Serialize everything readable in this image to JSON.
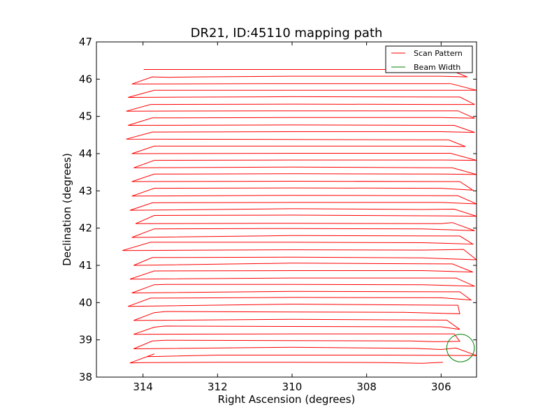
{
  "chart_data": {
    "type": "line",
    "title": "DR21, ID:45110 mapping path",
    "xlabel": "Right Ascension (degrees)",
    "ylabel": "Declination (degrees)",
    "xlim": [
      315.25,
      305.05
    ],
    "ylim": [
      38,
      47
    ],
    "x_invert": true,
    "xticks": [
      314,
      312,
      310,
      308,
      306
    ],
    "xtick_labels": [
      "314",
      "312",
      "310",
      "308",
      "306"
    ],
    "yticks": [
      38,
      39,
      40,
      41,
      42,
      43,
      44,
      45,
      46,
      47
    ],
    "ytick_labels": [
      "38",
      "39",
      "40",
      "41",
      "42",
      "43",
      "44",
      "45",
      "46",
      "47"
    ],
    "grid": false,
    "legend_position": "top-right",
    "colors": {
      "scan_pattern": "#ff0000",
      "beam_width": "#008000"
    },
    "series": [
      {
        "name": "Scan Pattern",
        "legend_label": "Scan Pattern",
        "points": [
          [
            305.95,
            38.4
          ],
          [
            306.5,
            38.37
          ],
          [
            307.5,
            38.39
          ],
          [
            310.0,
            38.4
          ],
          [
            312.0,
            38.4
          ],
          [
            314.0,
            38.39
          ],
          [
            314.35,
            38.38
          ],
          [
            313.7,
            38.62
          ],
          [
            313.9,
            38.55
          ],
          [
            312.0,
            38.59
          ],
          [
            310.0,
            38.59
          ],
          [
            307.5,
            38.59
          ],
          [
            305.05,
            38.58
          ],
          [
            305.6,
            38.78
          ],
          [
            306.0,
            38.74
          ],
          [
            306.7,
            38.77
          ],
          [
            310.0,
            38.8
          ],
          [
            314.25,
            38.76
          ],
          [
            313.75,
            38.97
          ],
          [
            313.4,
            38.99
          ],
          [
            310.0,
            38.98
          ],
          [
            306.8,
            38.97
          ],
          [
            306.2,
            38.95
          ],
          [
            305.5,
            38.96
          ],
          [
            305.65,
            39.16
          ],
          [
            310.0,
            39.16
          ],
          [
            314.25,
            39.15
          ],
          [
            313.7,
            39.34
          ],
          [
            313.4,
            39.37
          ],
          [
            310.0,
            39.36
          ],
          [
            306.0,
            39.35
          ],
          [
            305.5,
            39.28
          ],
          [
            305.85,
            39.53
          ],
          [
            310.0,
            39.55
          ],
          [
            314.25,
            39.52
          ],
          [
            313.7,
            39.73
          ],
          [
            313.4,
            39.76
          ],
          [
            310.0,
            39.75
          ],
          [
            307.0,
            39.74
          ],
          [
            305.5,
            39.7
          ],
          [
            305.55,
            39.93
          ],
          [
            310.0,
            39.96
          ],
          [
            314.4,
            39.9
          ],
          [
            313.8,
            40.12
          ],
          [
            310.0,
            40.14
          ],
          [
            306.0,
            40.13
          ],
          [
            305.2,
            40.07
          ],
          [
            305.5,
            40.29
          ],
          [
            310.0,
            40.3
          ],
          [
            314.3,
            40.26
          ],
          [
            313.7,
            40.48
          ],
          [
            313.4,
            40.49
          ],
          [
            310.0,
            40.49
          ],
          [
            306.5,
            40.48
          ],
          [
            305.1,
            40.44
          ],
          [
            305.6,
            40.66
          ],
          [
            310.0,
            40.66
          ],
          [
            314.35,
            40.63
          ],
          [
            313.7,
            40.85
          ],
          [
            310.0,
            40.86
          ],
          [
            306.5,
            40.86
          ],
          [
            305.15,
            40.82
          ],
          [
            305.7,
            41.04
          ],
          [
            310.0,
            41.06
          ],
          [
            314.25,
            41.0
          ],
          [
            313.75,
            41.21
          ],
          [
            310.0,
            41.22
          ],
          [
            306.5,
            41.2
          ],
          [
            305.05,
            41.15
          ],
          [
            305.4,
            41.43
          ],
          [
            306.5,
            41.41
          ],
          [
            310.0,
            41.42
          ],
          [
            314.55,
            41.4
          ],
          [
            313.8,
            41.62
          ],
          [
            310.0,
            41.62
          ],
          [
            306.5,
            41.61
          ],
          [
            305.15,
            41.57
          ],
          [
            305.5,
            41.79
          ],
          [
            310.0,
            41.8
          ],
          [
            314.3,
            41.75
          ],
          [
            313.7,
            41.98
          ],
          [
            310.0,
            41.99
          ],
          [
            306.5,
            41.98
          ],
          [
            305.1,
            41.93
          ],
          [
            305.7,
            42.15
          ],
          [
            306.0,
            42.12
          ],
          [
            310.0,
            42.13
          ],
          [
            314.2,
            42.12
          ],
          [
            313.7,
            42.34
          ],
          [
            310.0,
            42.35
          ],
          [
            306.0,
            42.33
          ],
          [
            305.05,
            42.32
          ],
          [
            305.65,
            42.51
          ],
          [
            306.5,
            42.5
          ],
          [
            310.0,
            42.52
          ],
          [
            314.35,
            42.48
          ],
          [
            313.75,
            42.68
          ],
          [
            310.0,
            42.69
          ],
          [
            306.0,
            42.69
          ],
          [
            305.05,
            42.65
          ],
          [
            305.55,
            42.87
          ],
          [
            310.0,
            42.88
          ],
          [
            314.3,
            42.86
          ],
          [
            313.7,
            43.07
          ],
          [
            310.0,
            43.08
          ],
          [
            306.0,
            43.07
          ],
          [
            305.15,
            43.02
          ],
          [
            305.5,
            43.25
          ],
          [
            310.0,
            43.26
          ],
          [
            314.3,
            43.25
          ],
          [
            313.7,
            43.45
          ],
          [
            310.0,
            43.46
          ],
          [
            305.9,
            43.45
          ],
          [
            305.05,
            43.44
          ],
          [
            305.7,
            43.62
          ],
          [
            310.0,
            43.64
          ],
          [
            314.25,
            43.62
          ],
          [
            313.7,
            43.82
          ],
          [
            310.0,
            43.83
          ],
          [
            306.0,
            43.83
          ],
          [
            305.05,
            43.82
          ],
          [
            305.75,
            44.01
          ],
          [
            310.0,
            44.01
          ],
          [
            314.3,
            44.0
          ],
          [
            313.7,
            44.2
          ],
          [
            310.0,
            44.2
          ],
          [
            306.0,
            44.2
          ],
          [
            305.35,
            44.19
          ],
          [
            305.8,
            44.37
          ],
          [
            310.0,
            44.38
          ],
          [
            314.45,
            44.39
          ],
          [
            313.75,
            44.58
          ],
          [
            310.0,
            44.59
          ],
          [
            306.0,
            44.59
          ],
          [
            305.1,
            44.57
          ],
          [
            305.65,
            44.76
          ],
          [
            310.0,
            44.77
          ],
          [
            314.4,
            44.76
          ],
          [
            313.75,
            44.96
          ],
          [
            310.0,
            44.97
          ],
          [
            306.0,
            44.97
          ],
          [
            305.1,
            44.95
          ],
          [
            305.55,
            45.15
          ],
          [
            310.0,
            45.15
          ],
          [
            314.45,
            45.14
          ],
          [
            313.8,
            45.32
          ],
          [
            310.0,
            45.33
          ],
          [
            306.0,
            45.32
          ],
          [
            305.1,
            45.32
          ],
          [
            305.5,
            45.52
          ],
          [
            310.0,
            45.53
          ],
          [
            314.4,
            45.51
          ],
          [
            313.7,
            45.7
          ],
          [
            310.0,
            45.7
          ],
          [
            306.0,
            45.7
          ],
          [
            305.05,
            45.7
          ],
          [
            305.75,
            45.88
          ],
          [
            310.0,
            45.88
          ],
          [
            314.3,
            45.87
          ],
          [
            313.75,
            46.06
          ],
          [
            313.3,
            46.05
          ],
          [
            312.5,
            46.06
          ],
          [
            310.0,
            46.08
          ],
          [
            306.0,
            46.08
          ],
          [
            305.3,
            46.06
          ],
          [
            305.8,
            46.26
          ],
          [
            310.0,
            46.26
          ],
          [
            313.98,
            46.26
          ]
        ]
      },
      {
        "name": "Beam Width",
        "legend_label": "Beam Width",
        "shape": "circle",
        "center": [
          305.48,
          38.78
        ],
        "radius": 0.37
      }
    ]
  }
}
